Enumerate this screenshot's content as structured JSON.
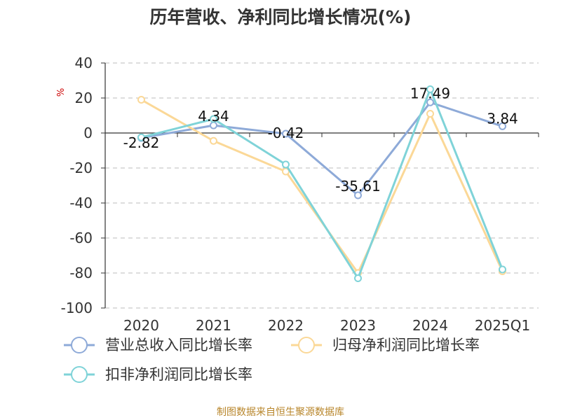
{
  "colors": {
    "revenue": "#8eaad8",
    "net_profit": "#fbd897",
    "deducted_profit": "#7fd3d8",
    "grid": "#bbbbbb",
    "axis": "#333333",
    "source": "#b8862b"
  },
  "chart_data": {
    "type": "line",
    "title": "历年营收、净利同比增长情况(%)",
    "ylabel": "%",
    "categories": [
      "2020",
      "2021",
      "2022",
      "2023",
      "2024",
      "2025Q1"
    ],
    "ylim": [
      -100,
      40
    ],
    "yticks": [
      40,
      20,
      0,
      -20,
      -40,
      -60,
      -80,
      -100
    ],
    "grid": "horizontal-dashed",
    "legend_position": "bottom-left",
    "series": [
      {
        "name": "营业总收入同比增长率",
        "color": "#8eaad8",
        "values": [
          -2.82,
          4.34,
          -0.42,
          -35.61,
          17.49,
          3.84
        ],
        "labels": [
          "-2.82",
          "4.34",
          "-0.42",
          "-35.61",
          "17.49",
          "3.84"
        ]
      },
      {
        "name": "归母净利润同比增长率",
        "color": "#fbd897",
        "values": [
          19,
          -4.5,
          -22,
          -80,
          11,
          -79
        ]
      },
      {
        "name": "扣非净利润同比增长率",
        "color": "#7fd3d8",
        "values": [
          -2.5,
          8,
          -18,
          -83,
          25,
          -78
        ]
      }
    ]
  },
  "source_text": "制图数据来自恒生聚源数据库"
}
